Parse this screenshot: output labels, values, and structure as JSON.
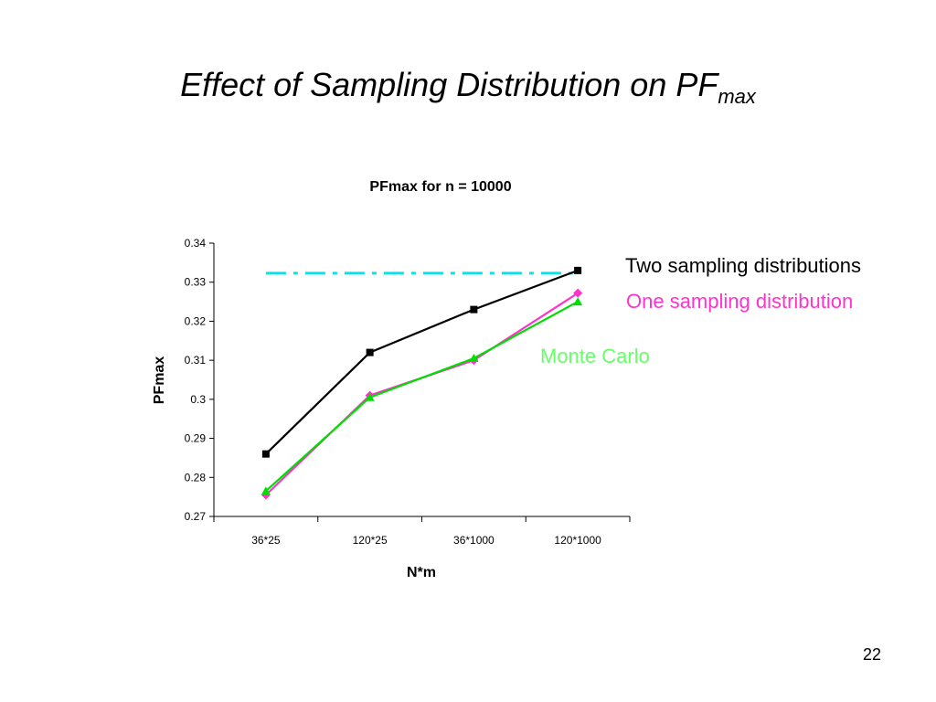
{
  "slide": {
    "title_main": "Effect of Sampling Distribution on PF",
    "title_sub": "max",
    "page_number": "22"
  },
  "annotations": {
    "two": {
      "text": "Two sampling distributions",
      "color": "#000000"
    },
    "one": {
      "text": "One sampling distribution",
      "color": "#ff33cc"
    },
    "monte_word1": "Monte",
    "monte_word2": "Carlo",
    "monte_color": "#66ff66"
  },
  "chart_data": {
    "type": "line",
    "title": "PFmax for n = 10000",
    "xlabel": "N*m",
    "ylabel": "PFmax",
    "categories": [
      "36*25",
      "120*25",
      "36*1000",
      "120*1000"
    ],
    "ylim": [
      0.27,
      0.34
    ],
    "yticks": [
      0.27,
      0.28,
      0.29,
      0.3,
      0.31,
      0.32,
      0.33,
      0.34
    ],
    "ytick_labels": [
      "0.27",
      "0.28",
      "0.29",
      "0.3",
      "0.31",
      "0.32",
      "0.33",
      "0.34"
    ],
    "grid": false,
    "series": [
      {
        "values": [
          0.286,
          0.312,
          0.323,
          0.333
        ],
        "color": "#000000",
        "marker": "square"
      },
      {
        "values": [
          0.2755,
          0.301,
          0.31,
          0.3272
        ],
        "color": "#ff33cc",
        "marker": "diamond"
      },
      {
        "values": [
          0.2765,
          0.3005,
          0.3105,
          0.325
        ],
        "color": "#00dd00",
        "marker": "triangle"
      }
    ],
    "reference_line": {
      "y": 0.3323,
      "color": "#00e5ee",
      "style": "dash-dot"
    }
  }
}
